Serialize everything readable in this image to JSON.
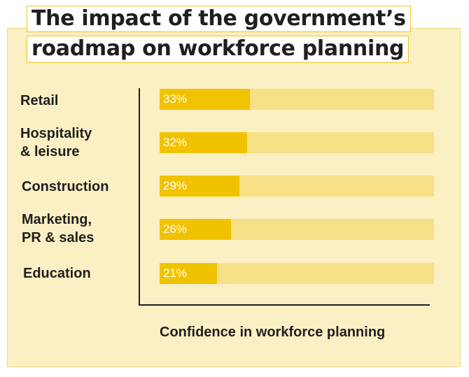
{
  "title_lines": [
    "The impact of the government’s",
    "roadmap on workforce planning"
  ],
  "chart_data": {
    "type": "bar",
    "orientation": "horizontal",
    "title": "The impact of the government’s roadmap on workforce planning",
    "xlabel": "Confidence in workforce planning",
    "ylabel": "",
    "xlim": [
      0,
      100
    ],
    "grid": false,
    "categories": [
      "Retail",
      "Hospitality\n& leisure",
      "Construction",
      "Marketing,\nPR & sales",
      "Education"
    ],
    "values": [
      33,
      32,
      29,
      26,
      21
    ],
    "value_labels": [
      "33%",
      "32%",
      "29%",
      "26%",
      "21%"
    ]
  },
  "colors": {
    "bar": "#f1c200",
    "track": "#f7df86",
    "background": "#fbf0c4",
    "title_border": "#f0c419",
    "text": "#1f1f1f"
  }
}
